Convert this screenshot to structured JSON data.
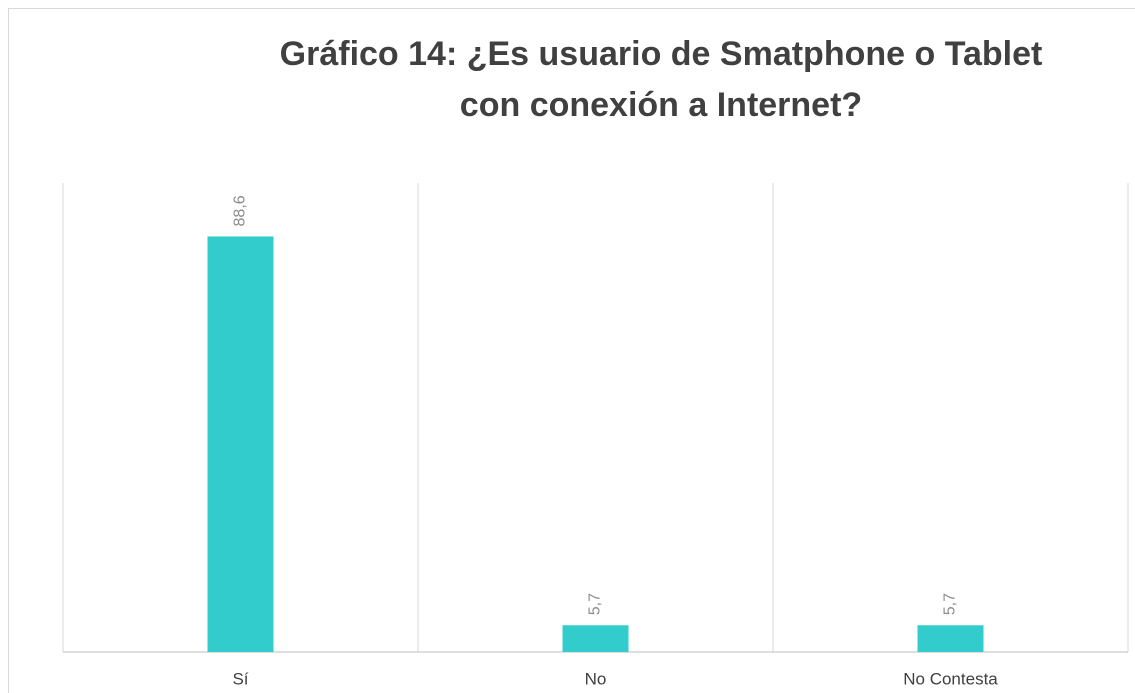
{
  "chart_data": {
    "type": "bar",
    "title": [
      "Gráfico 14: ¿Es usuario de Smatphone o Tablet",
      "con conexión a Internet?"
    ],
    "categories": [
      "Sí",
      "No",
      "No Contesta"
    ],
    "values": [
      88.6,
      5.7,
      5.7
    ],
    "value_labels": [
      "88,6",
      "5,7",
      "5,7"
    ],
    "color": "#33cccc",
    "ylim": [
      0,
      100
    ]
  }
}
